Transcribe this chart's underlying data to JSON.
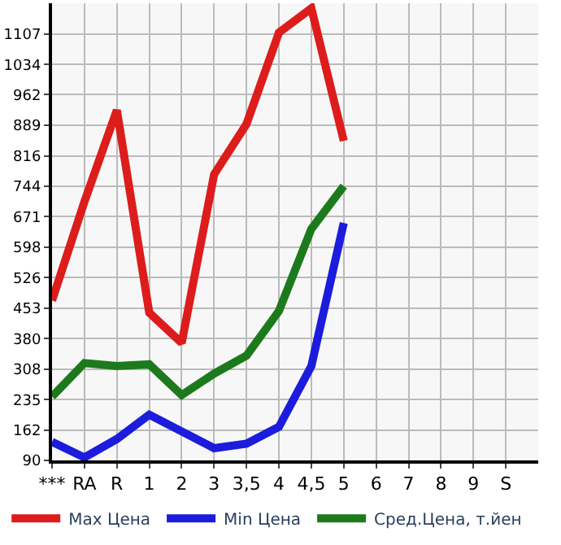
{
  "chart_data": {
    "type": "line",
    "categories": [
      "***",
      "RA",
      "R",
      "1",
      "2",
      "3",
      "3,5",
      "4",
      "4,5",
      "5",
      "6",
      "7",
      "8",
      "9",
      "S"
    ],
    "series": [
      {
        "name": "Max Цена",
        "color": "#dd1c1c",
        "values": [
          471,
          707,
          925,
          442,
          370,
          772,
          892,
          1110,
          1168,
          852,
          null,
          null,
          null,
          null,
          null
        ]
      },
      {
        "name": "Min Цена",
        "color": "#1c1cdd",
        "values": [
          134,
          97,
          141,
          199,
          159,
          119,
          130,
          170,
          315,
          656,
          null,
          null,
          null,
          null,
          null
        ]
      },
      {
        "name": "Сред.Цена, т.йен",
        "color": "#1c7a1c",
        "values": [
          242,
          322,
          315,
          319,
          246,
          297,
          340,
          446,
          642,
          744,
          null,
          null,
          null,
          null,
          null
        ]
      }
    ],
    "ylim": [
      90,
      1180
    ],
    "yticks": [
      90,
      162,
      235,
      308,
      380,
      453,
      526,
      598,
      671,
      744,
      816,
      889,
      962,
      1034,
      1107
    ],
    "grid": true,
    "legend": "bottom",
    "marker": "none",
    "line_style": "solid"
  }
}
